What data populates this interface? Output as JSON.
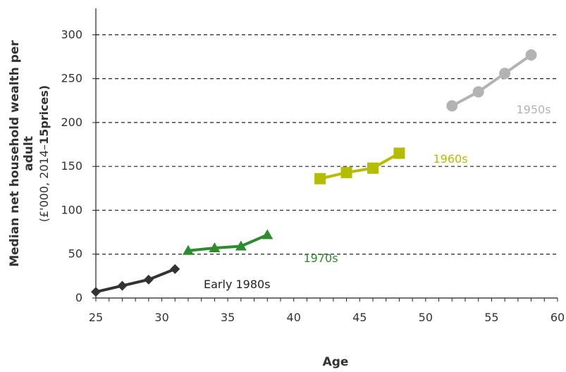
{
  "chart_data": {
    "type": "line",
    "xlabel": "Age",
    "ylabel_line1": "Median net household wealth per",
    "ylabel_line2": "adult",
    "ylabel_line3_pre": "(£'000, 2014–",
    "ylabel_line3_bold": "15",
    "ylabel_line3_post": "prices)",
    "xlim": [
      25,
      60
    ],
    "ylim": [
      0,
      330
    ],
    "x_ticks": [
      25,
      30,
      35,
      40,
      45,
      50,
      55,
      60
    ],
    "x_tick_labels": [
      "25",
      "30",
      "35",
      "40",
      "45",
      "50",
      "55",
      "60"
    ],
    "y_ticks": [
      0,
      50,
      100,
      150,
      200,
      250,
      300
    ],
    "y_tick_labels": [
      "0",
      "50",
      "100",
      "150",
      "200",
      "250",
      "300"
    ],
    "gridlines_y": [
      50,
      100,
      150,
      200,
      250,
      300
    ],
    "series": [
      {
        "name": "Early 1980s",
        "color": "#333333",
        "marker": "diamond",
        "x": [
          25,
          27,
          29,
          31
        ],
        "y": [
          7,
          14,
          21,
          33
        ]
      },
      {
        "name": "1970s",
        "color": "#2e8b2e",
        "marker": "triangle",
        "x": [
          32,
          34,
          36,
          38
        ],
        "y": [
          54,
          57,
          59,
          72
        ]
      },
      {
        "name": "1960s",
        "color": "#b5bd00",
        "marker": "square",
        "x": [
          42,
          44,
          46,
          48
        ],
        "y": [
          136,
          143,
          148,
          165
        ]
      },
      {
        "name": "1950s",
        "color": "#b3b3b3",
        "marker": "circle",
        "x": [
          52,
          54,
          56,
          58
        ],
        "y": [
          219,
          235,
          256,
          277
        ]
      }
    ]
  }
}
